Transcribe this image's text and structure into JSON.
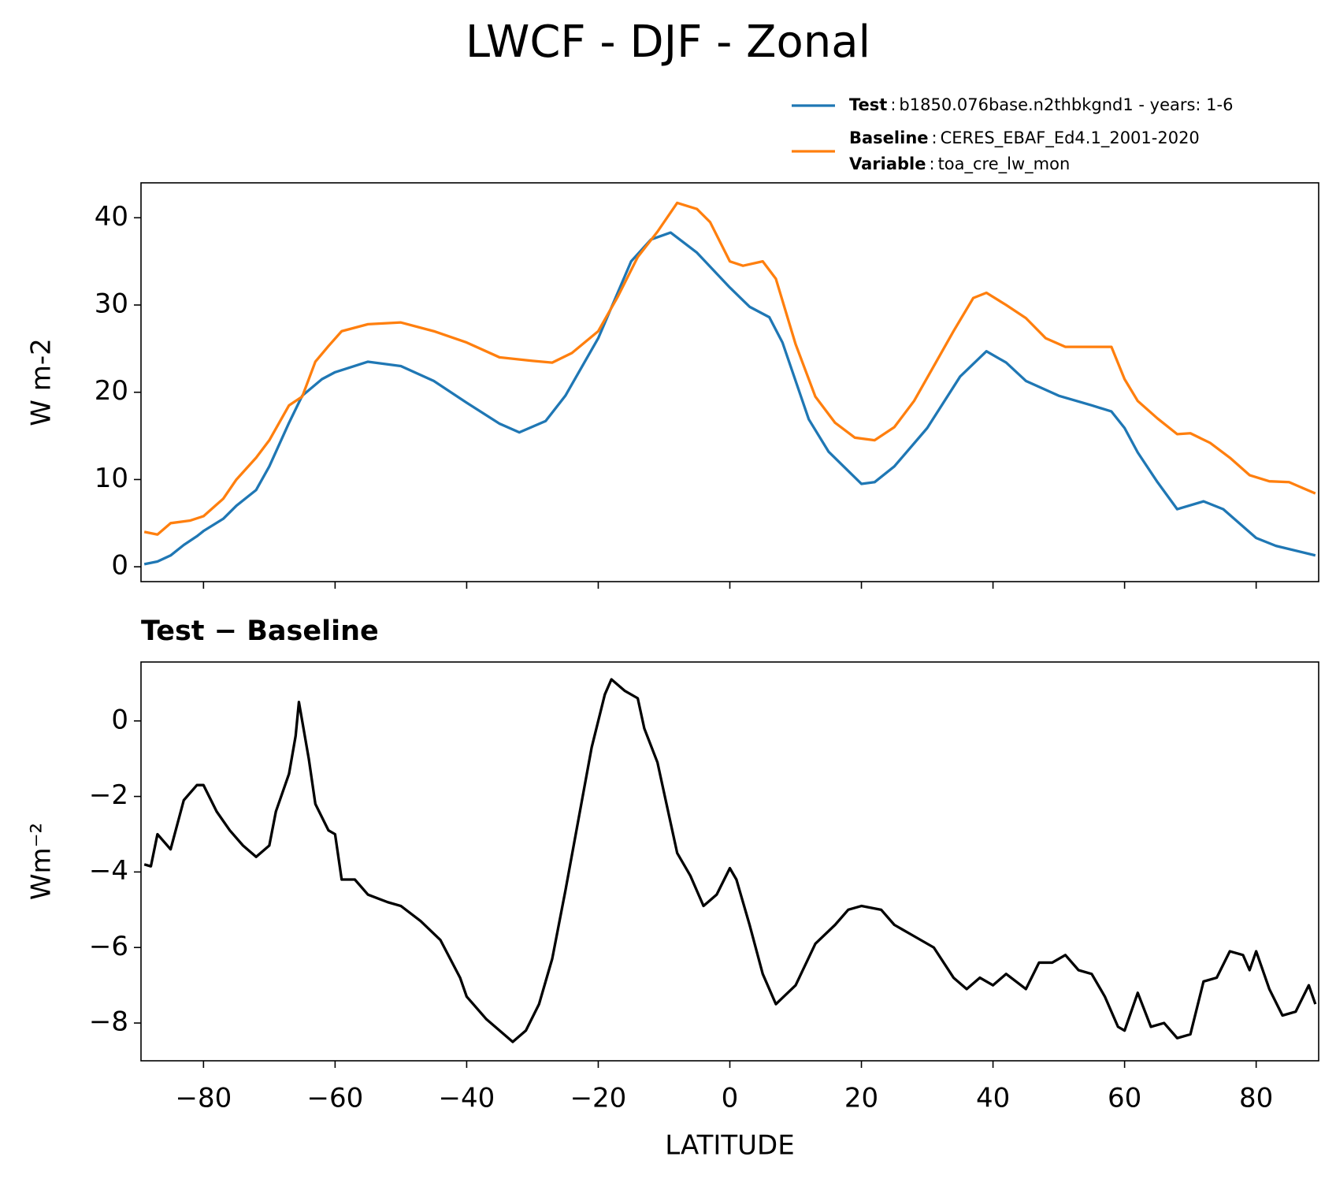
{
  "chart_data": [
    {
      "type": "line",
      "title": "LWCF - DJF - Zonal",
      "ylabel": "W m-2",
      "xlim": [
        -89.5,
        89.5
      ],
      "ylim": [
        -1.7,
        44
      ],
      "xticks": [
        -80,
        -60,
        -40,
        -20,
        0,
        20,
        40,
        60,
        80
      ],
      "yticks": [
        0,
        10,
        20,
        30,
        40
      ],
      "legend": "above right",
      "legend_separator": ":",
      "variable": {
        "name": "Variable",
        "value": "toa_cre_lw_mon"
      },
      "series": [
        {
          "name": "Test",
          "description": "b1850.076base.n2thbkgnd1 - years: 1-6",
          "color": "#1f77b4",
          "x": [
            -89,
            -87,
            -85,
            -83,
            -81,
            -80,
            -77,
            -75,
            -72,
            -70,
            -67,
            -65,
            -62,
            -60,
            -55,
            -50,
            -45,
            -40,
            -35,
            -32,
            -28,
            -25,
            -20,
            -15,
            -12,
            -9,
            -5,
            0,
            3,
            6,
            8,
            12,
            15,
            20,
            22,
            25,
            30,
            35,
            39,
            42,
            45,
            50,
            55,
            58,
            60,
            62,
            65,
            68,
            72,
            75,
            80,
            83,
            89
          ],
          "values": [
            0.3,
            0.6,
            1.3,
            2.5,
            3.5,
            4.1,
            5.5,
            7.0,
            8.8,
            11.5,
            16.5,
            19.6,
            21.5,
            22.3,
            23.5,
            23.0,
            21.3,
            18.8,
            16.4,
            15.4,
            16.7,
            19.6,
            26.2,
            35.0,
            37.5,
            38.3,
            36.0,
            32.0,
            29.8,
            28.6,
            25.7,
            16.9,
            13.2,
            9.5,
            9.7,
            11.5,
            15.9,
            21.8,
            24.7,
            23.4,
            21.3,
            19.6,
            18.5,
            17.8,
            15.9,
            13.1,
            9.7,
            6.6,
            7.5,
            6.6,
            3.3,
            2.4,
            1.3
          ]
        },
        {
          "name": "Baseline",
          "description": "CERES_EBAF_Ed4.1_2001-2020",
          "color": "#ff7f0e",
          "x": [
            -89,
            -87,
            -85,
            -82,
            -80,
            -77,
            -75,
            -72,
            -70,
            -67,
            -65,
            -63,
            -61,
            -59,
            -55,
            -50,
            -45,
            -40,
            -35,
            -30,
            -27,
            -24,
            -20,
            -17,
            -14,
            -11,
            -8,
            -5,
            -3,
            0,
            2,
            5,
            7,
            10,
            13,
            16,
            19,
            22,
            25,
            28,
            31,
            34,
            37,
            39,
            42,
            45,
            48,
            51,
            55,
            58,
            60,
            62,
            65,
            68,
            70,
            73,
            76,
            79,
            82,
            85,
            89
          ],
          "values": [
            4.0,
            3.7,
            5.0,
            5.3,
            5.8,
            7.8,
            10,
            12.5,
            14.5,
            18.5,
            19.5,
            23.5,
            25.3,
            27.0,
            27.8,
            28.0,
            27.0,
            25.7,
            24.0,
            23.6,
            23.4,
            24.5,
            27.0,
            31,
            35.5,
            38.4,
            41.7,
            41.0,
            39.5,
            35.0,
            34.5,
            35.0,
            33.0,
            25.5,
            19.5,
            16.5,
            14.8,
            14.5,
            16.0,
            19.0,
            23,
            27,
            30.8,
            31.4,
            30,
            28.5,
            26.2,
            25.2,
            25.2,
            25.2,
            21.5,
            19,
            17,
            15.2,
            15.3,
            14.2,
            12.5,
            10.5,
            9.8,
            9.7,
            8.4
          ]
        }
      ]
    },
    {
      "type": "line",
      "title": "Test − Baseline",
      "xlabel": "LATITUDE",
      "ylabel": "Wm⁻²",
      "xlim": [
        -89.5,
        89.5
      ],
      "ylim": [
        -9,
        1.56
      ],
      "xticks": [
        {
          "value": -80,
          "label": "−80"
        },
        {
          "value": -60,
          "label": "−60"
        },
        {
          "value": -40,
          "label": "−40"
        },
        {
          "value": -20,
          "label": "−20"
        },
        0,
        20,
        40,
        60,
        80
      ],
      "yticks": [
        {
          "value": -8,
          "label": "−8"
        },
        {
          "value": -6,
          "label": "−6"
        },
        {
          "value": -4,
          "label": "−4"
        },
        {
          "value": -2,
          "label": "−2"
        },
        0
      ],
      "series": [
        {
          "color": "#000000",
          "x": [
            -89,
            -88,
            -87,
            -85,
            -83,
            -81,
            -80,
            -78,
            -76,
            -74,
            -72,
            -70,
            -69,
            -67,
            -66,
            -65.5,
            -64,
            -63,
            -61,
            -60,
            -59,
            -57,
            -55,
            -52,
            -50,
            -47,
            -44,
            -41,
            -40,
            -37,
            -35,
            -33,
            -31,
            -29,
            -27,
            -25,
            -23,
            -21,
            -19,
            -18,
            -16,
            -14,
            -13,
            -11,
            -9,
            -8,
            -6,
            -4,
            -2,
            0,
            1,
            3,
            5,
            7,
            10,
            13,
            16,
            18,
            20,
            23,
            25,
            28,
            31,
            34,
            36,
            38,
            40,
            42,
            45,
            47,
            49,
            51,
            53,
            55,
            57,
            59,
            60,
            62,
            64,
            66,
            68,
            70,
            72,
            74,
            76,
            78,
            79,
            80,
            82,
            84,
            86,
            88,
            89
          ],
          "values": [
            -3.8,
            -3.85,
            -3.0,
            -3.4,
            -2.1,
            -1.7,
            -1.7,
            -2.4,
            -2.9,
            -3.3,
            -3.6,
            -3.3,
            -2.4,
            -1.4,
            -0.4,
            0.5,
            -1.0,
            -2.2,
            -2.9,
            -3.0,
            -4.2,
            -4.2,
            -4.6,
            -4.8,
            -4.9,
            -5.3,
            -5.8,
            -6.8,
            -7.3,
            -7.9,
            -8.2,
            -8.5,
            -8.2,
            -7.5,
            -6.3,
            -4.5,
            -2.6,
            -0.7,
            0.7,
            1.1,
            0.8,
            0.6,
            -0.2,
            -1.1,
            -2.7,
            -3.5,
            -4.1,
            -4.9,
            -4.6,
            -3.9,
            -4.2,
            -5.4,
            -6.7,
            -7.5,
            -7.0,
            -5.9,
            -5.4,
            -5.0,
            -4.9,
            -5.0,
            -5.4,
            -5.7,
            -6.0,
            -6.8,
            -7.1,
            -6.8,
            -7.0,
            -6.7,
            -7.1,
            -6.4,
            -6.4,
            -6.2,
            -6.6,
            -6.7,
            -7.3,
            -8.1,
            -8.2,
            -7.2,
            -8.1,
            -8.0,
            -8.4,
            -8.3,
            -6.9,
            -6.8,
            -6.1,
            -6.2,
            -6.6,
            -6.1,
            -7.1,
            -7.8,
            -7.7,
            -7.0,
            -7.5
          ]
        }
      ]
    }
  ]
}
